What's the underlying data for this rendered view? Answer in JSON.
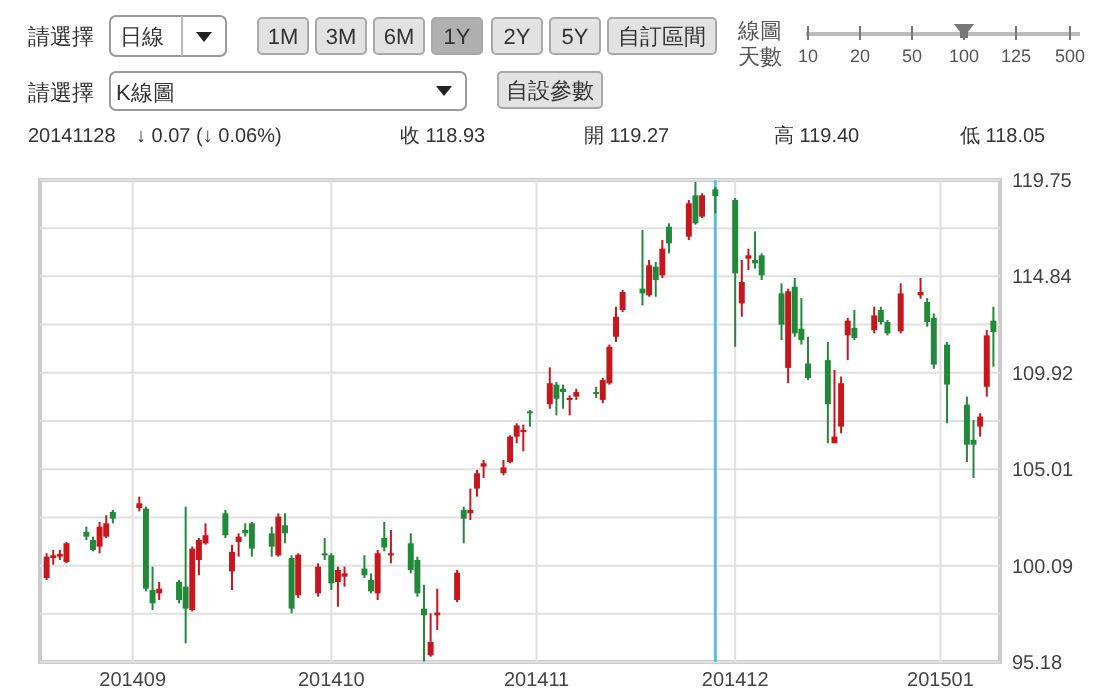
{
  "chart_data": {
    "type": "candlestick",
    "x": [
      "2014-08-19",
      "2014-08-20",
      "2014-08-21",
      "2014-08-22",
      "2014-08-25",
      "2014-08-26",
      "2014-08-27",
      "2014-08-28",
      "2014-08-29",
      "2014-09-02",
      "2014-09-03",
      "2014-09-04",
      "2014-09-05",
      "2014-09-08",
      "2014-09-09",
      "2014-09-10",
      "2014-09-11",
      "2014-09-12",
      "2014-09-15",
      "2014-09-16",
      "2014-09-17",
      "2014-09-18",
      "2014-09-19",
      "2014-09-22",
      "2014-09-23",
      "2014-09-24",
      "2014-09-25",
      "2014-09-26",
      "2014-09-29",
      "2014-09-30",
      "2014-10-01",
      "2014-10-02",
      "2014-10-03",
      "2014-10-06",
      "2014-10-07",
      "2014-10-08",
      "2014-10-09",
      "2014-10-10",
      "2014-10-13",
      "2014-10-14",
      "2014-10-15",
      "2014-10-16",
      "2014-10-17",
      "2014-10-20",
      "2014-10-21",
      "2014-10-22",
      "2014-10-23",
      "2014-10-24",
      "2014-10-27",
      "2014-10-28",
      "2014-10-29",
      "2014-10-30",
      "2014-10-31",
      "2014-11-03",
      "2014-11-04",
      "2014-11-05",
      "2014-11-06",
      "2014-11-07",
      "2014-11-10",
      "2014-11-11",
      "2014-11-12",
      "2014-11-13",
      "2014-11-14",
      "2014-11-17",
      "2014-11-18",
      "2014-11-19",
      "2014-11-20",
      "2014-11-21",
      "2014-11-24",
      "2014-11-25",
      "2014-11-26",
      "2014-11-28",
      "2014-12-01",
      "2014-12-02",
      "2014-12-03",
      "2014-12-04",
      "2014-12-05",
      "2014-12-08",
      "2014-12-09",
      "2014-12-10",
      "2014-12-11",
      "2014-12-12",
      "2014-12-15",
      "2014-12-16",
      "2014-12-17",
      "2014-12-18",
      "2014-12-19",
      "2014-12-22",
      "2014-12-23",
      "2014-12-24",
      "2014-12-26",
      "2014-12-29",
      "2014-12-30",
      "2014-12-31",
      "2015-01-02",
      "2015-01-05",
      "2015-01-06",
      "2015-01-07",
      "2015-01-08",
      "2015-01-09"
    ],
    "ohlc": [
      [
        99.46,
        100.72,
        99.36,
        100.55
      ],
      [
        100.48,
        100.89,
        100.14,
        100.62
      ],
      [
        100.55,
        100.89,
        100.38,
        100.69
      ],
      [
        100.28,
        101.3,
        100.21,
        101.23
      ],
      [
        101.81,
        102.08,
        101.4,
        101.57
      ],
      [
        101.4,
        101.57,
        100.82,
        100.89
      ],
      [
        101.06,
        102.32,
        100.72,
        102.08
      ],
      [
        101.57,
        102.66,
        101.5,
        102.25
      ],
      [
        102.83,
        102.93,
        102.25,
        102.49
      ],
      [
        103.03,
        103.61,
        102.86,
        103.27
      ],
      [
        103.0,
        103.1,
        98.78,
        98.92
      ],
      [
        98.85,
        100.04,
        97.83,
        98.17
      ],
      [
        98.68,
        99.26,
        98.34,
        98.92
      ],
      [
        99.26,
        99.36,
        98.17,
        98.34
      ],
      [
        99.02,
        103.1,
        96.13,
        97.9
      ],
      [
        97.83,
        101.06,
        97.76,
        100.96
      ],
      [
        100.38,
        101.5,
        99.6,
        101.4
      ],
      [
        101.23,
        102.25,
        101.16,
        101.64
      ],
      [
        102.76,
        102.93,
        101.5,
        101.64
      ],
      [
        99.8,
        101.16,
        98.85,
        100.79
      ],
      [
        101.3,
        101.74,
        100.55,
        101.57
      ],
      [
        101.91,
        102.25,
        101.57,
        101.74
      ],
      [
        102.25,
        102.32,
        100.55,
        100.96
      ],
      [
        101.74,
        102.08,
        100.55,
        101.06
      ],
      [
        100.62,
        102.76,
        100.55,
        102.59
      ],
      [
        102.15,
        102.76,
        101.23,
        101.74
      ],
      [
        100.48,
        100.62,
        97.66,
        97.9
      ],
      [
        98.58,
        100.72,
        98.44,
        100.65
      ],
      [
        98.68,
        100.21,
        98.51,
        100.04
      ],
      [
        100.72,
        101.5,
        100.38,
        100.65
      ],
      [
        100.62,
        100.72,
        98.85,
        99.19
      ],
      [
        99.26,
        100.04,
        98.0,
        99.87
      ],
      [
        99.53,
        100.04,
        99.02,
        99.7
      ],
      [
        99.94,
        100.62,
        99.46,
        99.6
      ],
      [
        99.36,
        99.7,
        98.68,
        98.78
      ],
      [
        98.68,
        100.89,
        98.34,
        100.72
      ],
      [
        101.5,
        102.32,
        100.82,
        101.02
      ],
      [
        100.62,
        101.91,
        100.21,
        100.72
      ],
      [
        101.23,
        101.74,
        99.7,
        99.87
      ],
      [
        100.38,
        100.55,
        98.51,
        98.68
      ],
      [
        97.9,
        99.12,
        95.2,
        97.56
      ],
      [
        95.52,
        97.66,
        95.45,
        96.2
      ],
      [
        97.56,
        98.92,
        96.81,
        97.7
      ],
      [
        98.34,
        99.87,
        98.24,
        99.73
      ],
      [
        102.93,
        103.1,
        101.23,
        102.49
      ],
      [
        102.76,
        104.02,
        102.42,
        102.93
      ],
      [
        104.02,
        104.97,
        103.61,
        104.8
      ],
      [
        105.14,
        105.48,
        104.56,
        105.31
      ],
      [
        104.8,
        105.48,
        104.7,
        105.1
      ],
      [
        105.37,
        106.74,
        105.31,
        106.67
      ],
      [
        106.67,
        107.35,
        106.33,
        107.24
      ],
      [
        106.9,
        107.28,
        105.92,
        107.01
      ],
      [
        107.96,
        108.03,
        107.18,
        107.86
      ],
      [
        108.32,
        110.2,
        108.09,
        109.39
      ],
      [
        109.32,
        109.45,
        107.75,
        108.6
      ],
      [
        109.11,
        109.32,
        108.09,
        108.94
      ],
      [
        108.54,
        108.77,
        107.75,
        108.64
      ],
      [
        108.71,
        109.11,
        108.54,
        108.94
      ],
      [
        108.94,
        109.21,
        108.64,
        108.88
      ],
      [
        108.54,
        109.66,
        108.37,
        109.55
      ],
      [
        109.39,
        111.36,
        109.32,
        111.25
      ],
      [
        111.76,
        113.29,
        111.49,
        112.78
      ],
      [
        113.12,
        114.14,
        113.02,
        114.04
      ],
      [
        114.21,
        117.2,
        113.36,
        113.97
      ],
      [
        113.87,
        115.67,
        113.8,
        115.4
      ],
      [
        115.33,
        115.57,
        113.8,
        114.65
      ],
      [
        114.89,
        116.69,
        114.75,
        116.25
      ],
      [
        117.37,
        117.54,
        116.01,
        116.52
      ],
      [
        116.86,
        118.73,
        116.69,
        118.56
      ],
      [
        118.97,
        119.65,
        117.47,
        117.54
      ],
      [
        117.88,
        119.07,
        117.81,
        118.97
      ],
      [
        119.27,
        119.4,
        118.05,
        118.93
      ],
      [
        118.73,
        118.83,
        111.25,
        114.99
      ],
      [
        113.46,
        115.67,
        112.78,
        114.55
      ],
      [
        115.74,
        116.25,
        115.16,
        115.91
      ],
      [
        115.67,
        117.13,
        115.23,
        115.5
      ],
      [
        115.91,
        116.01,
        114.65,
        114.89
      ],
      [
        113.97,
        114.48,
        111.59,
        112.38
      ],
      [
        110.17,
        114.21,
        109.39,
        114.08
      ],
      [
        114.31,
        114.75,
        111.76,
        111.93
      ],
      [
        112.17,
        113.73,
        111.36,
        111.59
      ],
      [
        110.4,
        111.76,
        109.55,
        109.66
      ],
      [
        110.57,
        111.49,
        106.33,
        108.32
      ],
      [
        106.33,
        110.07,
        106.33,
        106.67
      ],
      [
        107.18,
        109.73,
        106.84,
        109.39
      ],
      [
        111.83,
        112.72,
        110.57,
        112.58
      ],
      [
        112.21,
        113.12,
        111.59,
        111.7
      ],
      [
        112.1,
        113.29,
        111.93,
        112.85
      ],
      [
        113.12,
        113.29,
        112.38,
        112.51
      ],
      [
        112.51,
        112.61,
        111.83,
        111.93
      ],
      [
        112.04,
        114.48,
        111.93,
        113.97
      ],
      [
        113.87,
        114.75,
        113.7,
        114.04
      ],
      [
        113.53,
        113.73,
        112.27,
        112.51
      ],
      [
        112.72,
        112.95,
        110.13,
        110.34
      ],
      [
        111.36,
        111.49,
        107.35,
        109.32
      ],
      [
        108.3,
        108.71,
        105.37,
        106.26
      ],
      [
        106.5,
        107.52,
        104.56,
        106.26
      ],
      [
        107.18,
        107.86,
        106.67,
        107.69
      ],
      [
        109.21,
        112.1,
        108.71,
        111.83
      ],
      [
        112.58,
        113.29,
        110.23,
        112.0
      ]
    ],
    "colors": [
      "#c8161d",
      "#c8161d",
      "#c8161d",
      "#c8161d",
      "#22883a",
      "#22883a",
      "#c8161d",
      "#c8161d",
      "#22883a",
      "#c8161d",
      "#22883a",
      "#22883a",
      "#c8161d",
      "#22883a",
      "#22883a",
      "#c8161d",
      "#c8161d",
      "#c8161d",
      "#22883a",
      "#c8161d",
      "#c8161d",
      "#22883a",
      "#22883a",
      "#22883a",
      "#c8161d",
      "#22883a",
      "#22883a",
      "#c8161d",
      "#c8161d",
      "#22883a",
      "#22883a",
      "#c8161d",
      "#c8161d",
      "#22883a",
      "#22883a",
      "#c8161d",
      "#22883a",
      "#c8161d",
      "#22883a",
      "#22883a",
      "#22883a",
      "#c8161d",
      "#c8161d",
      "#c8161d",
      "#22883a",
      "#c8161d",
      "#c8161d",
      "#c8161d",
      "#c8161d",
      "#c8161d",
      "#c8161d",
      "#c8161d",
      "#22883a",
      "#c8161d",
      "#22883a",
      "#22883a",
      "#c8161d",
      "#c8161d",
      "#22883a",
      "#c8161d",
      "#c8161d",
      "#c8161d",
      "#c8161d",
      "#22883a",
      "#c8161d",
      "#22883a",
      "#c8161d",
      "#22883a",
      "#c8161d",
      "#22883a",
      "#c8161d",
      "#22883a",
      "#22883a",
      "#c8161d",
      "#c8161d",
      "#22883a",
      "#22883a",
      "#22883a",
      "#c8161d",
      "#22883a",
      "#22883a",
      "#22883a",
      "#22883a",
      "#c8161d",
      "#c8161d",
      "#c8161d",
      "#22883a",
      "#c8161d",
      "#22883a",
      "#22883a",
      "#c8161d",
      "#c8161d",
      "#22883a",
      "#22883a",
      "#22883a",
      "#22883a",
      "#22883a",
      "#c8161d",
      "#c8161d",
      "#22883a"
    ],
    "xlim": [
      "2014-08-18",
      "2015-01-10"
    ],
    "ylim": [
      95.18,
      119.75
    ],
    "yticks": [
      95.18,
      {
        "value": 97.635,
        "label": null
      },
      100.09,
      {
        "value": 102.55,
        "label": null
      },
      105.01,
      {
        "value": 107.465,
        "label": null
      },
      109.92,
      {
        "value": 112.38,
        "label": null
      },
      114.84,
      {
        "value": 117.295,
        "label": null
      },
      119.75
    ],
    "xticks": [
      {
        "value": "2014-09-01",
        "label": "201409"
      },
      {
        "value": "2014-10-01",
        "label": "201410"
      },
      {
        "value": "2014-11-01",
        "label": "201411"
      },
      {
        "value": "2014-12-01",
        "label": "201412"
      },
      {
        "value": "2015-01-01",
        "label": "201501"
      }
    ],
    "grid": true,
    "ref_lines": [
      {
        "axis": "x",
        "value": "2014-11-28",
        "color": "#5bc0de"
      }
    ],
    "annotations": [
      "請選擇",
      "日線",
      "1M",
      "3M",
      "6M",
      "1Y",
      "2Y",
      "5Y",
      "自訂區間",
      "線圖",
      "天數",
      "10",
      "20",
      "50",
      "100",
      "125",
      "500",
      "請選擇",
      "K線圖",
      "自設參數",
      "20141128",
      "↓ 0.07 (↓ 0.06%)",
      "收 118.93",
      "開 119.27",
      "高 119.40",
      "低 118.05"
    ]
  }
}
